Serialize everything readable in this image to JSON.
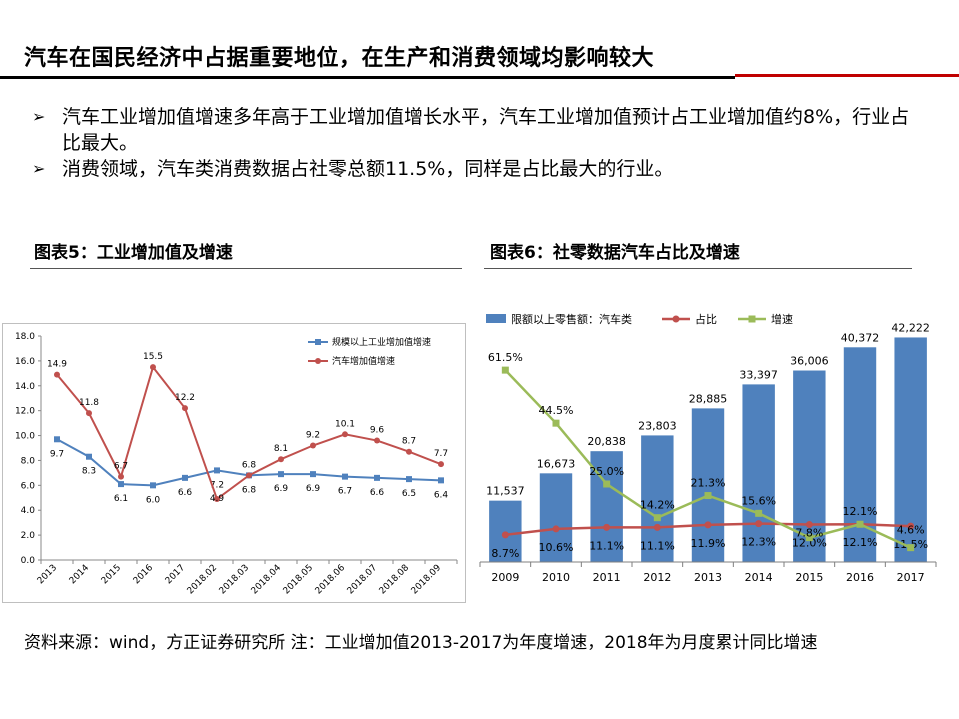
{
  "title": "汽车在国民经济中占据重要地位，在生产和消费领域均影响较大",
  "bullets": [
    "汽车工业增加值增速多年高于工业增加值增长水平，汽车工业增加值预计占工业增加值约8%，行业占比最大。",
    "消费领域，汽车类消费数据占社零总额11.5%，同样是占比最大的行业。"
  ],
  "figure5_title": "图表5：工业增加值及增速",
  "figure6_title": "图表6：社零数据汽车占比及增速",
  "source_note": "资料来源：wind，方正证券研究所  注：工业增加值2013-2017为年度增速，2018年为月度累计同比增速",
  "colors": {
    "accent_red": "#c00000",
    "blue": "#4f81bd",
    "red": "#c0504d",
    "green": "#9bbb59"
  },
  "chart_data": [
    {
      "type": "line",
      "categories": [
        "2013",
        "2014",
        "2015",
        "2016",
        "2017",
        "2018.02",
        "2018.03",
        "2018.04",
        "2018.05",
        "2018.06",
        "2018.07",
        "2018.08",
        "2018.09"
      ],
      "series": [
        {
          "name": "规模以上工业增加值增速",
          "color": "#4f81bd",
          "values": [
            9.7,
            8.3,
            6.1,
            6.0,
            6.6,
            7.2,
            6.8,
            6.9,
            6.9,
            6.7,
            6.6,
            6.5,
            6.4
          ],
          "labels": [
            "9.7",
            "8.3",
            "6.1",
            "6.0",
            "6.6",
            "7.2",
            "6.8",
            "6.9",
            "6.9",
            "6.7",
            "6.6",
            "6.5",
            "6.4"
          ]
        },
        {
          "name": "汽车增加值增速",
          "color": "#c0504d",
          "values": [
            14.9,
            11.8,
            6.7,
            15.5,
            12.2,
            4.9,
            6.8,
            8.1,
            9.2,
            10.1,
            9.6,
            8.7,
            7.7
          ],
          "labels": [
            "14.9",
            "11.8",
            "6.7",
            "15.5",
            "12.2",
            "4.9",
            "6.8",
            "8.1",
            "9.2",
            "10.1",
            "9.6",
            "8.7",
            "7.7"
          ]
        }
      ],
      "ylim": [
        0,
        18
      ],
      "yticks": [
        "0.0",
        "2.0",
        "4.0",
        "6.0",
        "8.0",
        "10.0",
        "12.0",
        "14.0",
        "16.0",
        "18.0"
      ],
      "legend": "top-right"
    },
    {
      "type": "bar",
      "categories": [
        "2009",
        "2010",
        "2011",
        "2012",
        "2013",
        "2014",
        "2015",
        "2016",
        "2017"
      ],
      "series": [
        {
          "name": "限额以上零售额：汽车类",
          "kind": "bar",
          "color": "#4f81bd",
          "values": [
            11537,
            16673,
            20838,
            23803,
            28885,
            33397,
            36006,
            40372,
            42222
          ],
          "labels": [
            "11,537",
            "16,673",
            "20,838",
            "23,803",
            "28,885",
            "33,397",
            "36,006",
            "40,372",
            "42,222"
          ]
        },
        {
          "name": "占比",
          "kind": "line",
          "unit": "%",
          "color": "#c0504d",
          "values": [
            8.7,
            10.6,
            11.1,
            11.1,
            11.9,
            12.3,
            12.0,
            12.1,
            11.5
          ],
          "labels": [
            "8.7%",
            "10.6%",
            "11.1%",
            "11.1%",
            "11.9%",
            "12.3%",
            "12.0%",
            "12.1%",
            "11.5%"
          ]
        },
        {
          "name": "增速",
          "kind": "line",
          "unit": "%",
          "color": "#9bbb59",
          "values": [
            61.5,
            44.5,
            25.0,
            14.2,
            21.3,
            15.6,
            7.8,
            12.1,
            4.6
          ],
          "labels": [
            "61.5%",
            "44.5%",
            "25.0%",
            "14.2%",
            "21.3%",
            "15.6%",
            "7.8%",
            "12.1%",
            "4.6%"
          ]
        }
      ],
      "legend": "top"
    }
  ]
}
